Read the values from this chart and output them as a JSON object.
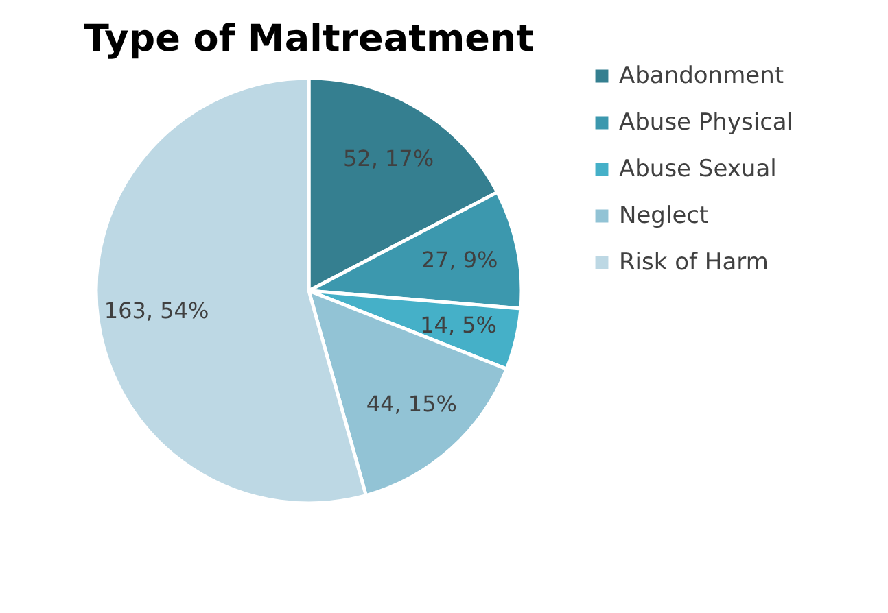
{
  "chart_data": {
    "type": "pie",
    "title": "Type of Maltreatment",
    "categories": [
      "Abandonment",
      "Abuse Physical",
      "Abuse Sexual",
      "Neglect",
      "Risk of Harm"
    ],
    "values": [
      52,
      27,
      14,
      44,
      163
    ],
    "value_labels": [
      "52, 17%",
      "27, 9%",
      "14, 5%",
      "44, 15%",
      "163, 54%"
    ],
    "colors": [
      "#357f90",
      "#3c98ae",
      "#45b0c8",
      "#92c3d5",
      "#bdd8e4"
    ],
    "legend": "right"
  }
}
